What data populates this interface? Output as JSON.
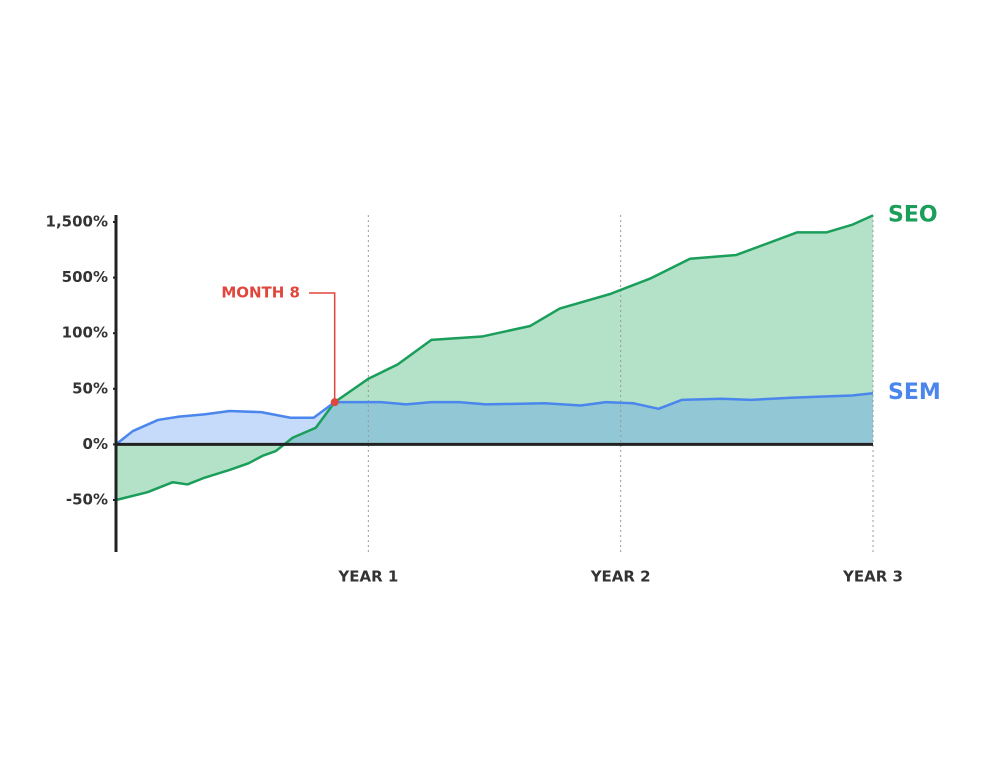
{
  "chart_data": {
    "type": "area",
    "x_label_note": null,
    "xlim": [
      0,
      36
    ],
    "xticks": [
      {
        "value": 12,
        "label": "YEAR 1"
      },
      {
        "value": 24,
        "label": "YEAR 2"
      },
      {
        "value": 36,
        "label": "YEAR 3"
      }
    ],
    "ylim": [
      -100,
      1700
    ],
    "yticks": [
      {
        "value": -50,
        "label": "-50%"
      },
      {
        "value": 0,
        "label": "0%"
      },
      {
        "value": 50,
        "label": "50%"
      },
      {
        "value": 100,
        "label": "100%"
      },
      {
        "value": 500,
        "label": "500%"
      },
      {
        "value": 1500,
        "label": "1,500%"
      }
    ],
    "grid": true,
    "series": [
      {
        "name": "SEO",
        "color": "#1a9e5a",
        "fill": "#b3e2c9",
        "x": [
          0,
          1.5,
          2.7,
          3.4,
          4.2,
          5.4,
          6.3,
          7,
          7.6,
          8.4,
          9.5,
          10.4,
          12,
          13.4,
          15,
          17.4,
          19.7,
          21.1,
          23.5,
          25.4,
          27.3,
          29.5,
          32.4,
          33.8,
          35,
          36
        ],
        "values": [
          -50,
          -43,
          -34,
          -36,
          -30,
          -23,
          -17,
          -10,
          -6,
          6,
          15,
          38,
          59,
          72,
          94,
          97,
          152,
          277,
          382,
          493,
          839,
          907,
          1314,
          1314,
          1449,
          1619
        ]
      },
      {
        "name": "SEM",
        "color": "#4a86ec",
        "fill": "#4e8ff0",
        "x": [
          0,
          0.8,
          2,
          3,
          4.2,
          5.4,
          6.9,
          8.3,
          9.4,
          10.4,
          11.4,
          12.6,
          13.8,
          15,
          16.3,
          17.6,
          20.4,
          22.1,
          23.3,
          24.6,
          25.8,
          26.9,
          28.8,
          30.2,
          32.1,
          33.5,
          35,
          36
        ],
        "values": [
          0,
          12,
          22,
          25,
          27,
          30,
          29,
          24,
          24,
          38,
          38,
          38,
          36,
          38,
          38,
          36,
          37,
          35,
          38,
          37,
          32,
          40,
          41,
          40,
          42,
          43,
          44,
          46
        ]
      }
    ],
    "annotation": {
      "text": "MONTH 8",
      "x": 10.4,
      "y": 38,
      "color": "#e0463c"
    }
  }
}
